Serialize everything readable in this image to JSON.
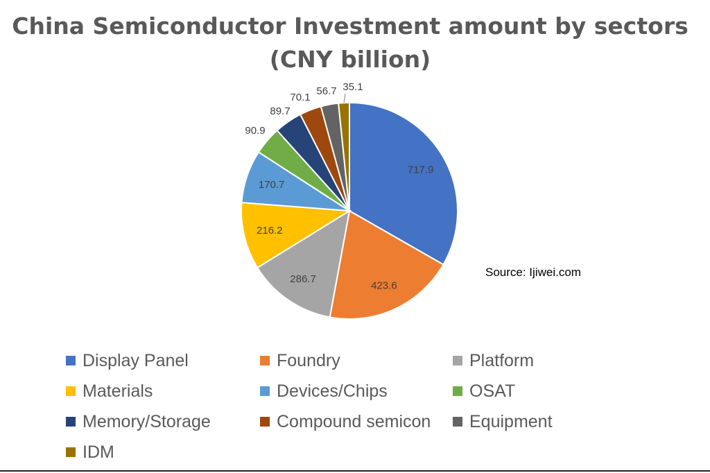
{
  "chart_data": {
    "type": "pie",
    "title": "China Semiconductor Investment amount by sectors",
    "subtitle": "(CNY billion)",
    "source": "Source: Ijiwei.com",
    "legend_position": "bottom",
    "slices": [
      {
        "label": "Display Panel",
        "value": 717.9,
        "value_label": "717.9",
        "color": "#4472C4"
      },
      {
        "label": "Foundry",
        "value": 423.6,
        "value_label": "423.6",
        "color": "#ED7D31"
      },
      {
        "label": "Platform",
        "value": 286.7,
        "value_label": "286.7",
        "color": "#A5A5A5"
      },
      {
        "label": "Materials",
        "value": 216.2,
        "value_label": "216.2",
        "color": "#FFC000"
      },
      {
        "label": "Devices/Chips",
        "value": 170.7,
        "value_label": "170.7",
        "color": "#5B9BD5"
      },
      {
        "label": "OSAT",
        "value": 90.9,
        "value_label": "90.9",
        "color": "#70AD47"
      },
      {
        "label": "Memory/Storage",
        "value": 89.7,
        "value_label": "89.7",
        "color": "#264478"
      },
      {
        "label": "Compound semicon",
        "value": 70.1,
        "value_label": "70.1",
        "color": "#9E480E"
      },
      {
        "label": "Equipment",
        "value": 56.7,
        "value_label": "56.7",
        "color": "#636363"
      },
      {
        "label": "IDM",
        "value": 35.1,
        "value_label": "35.1",
        "color": "#997300"
      }
    ]
  }
}
